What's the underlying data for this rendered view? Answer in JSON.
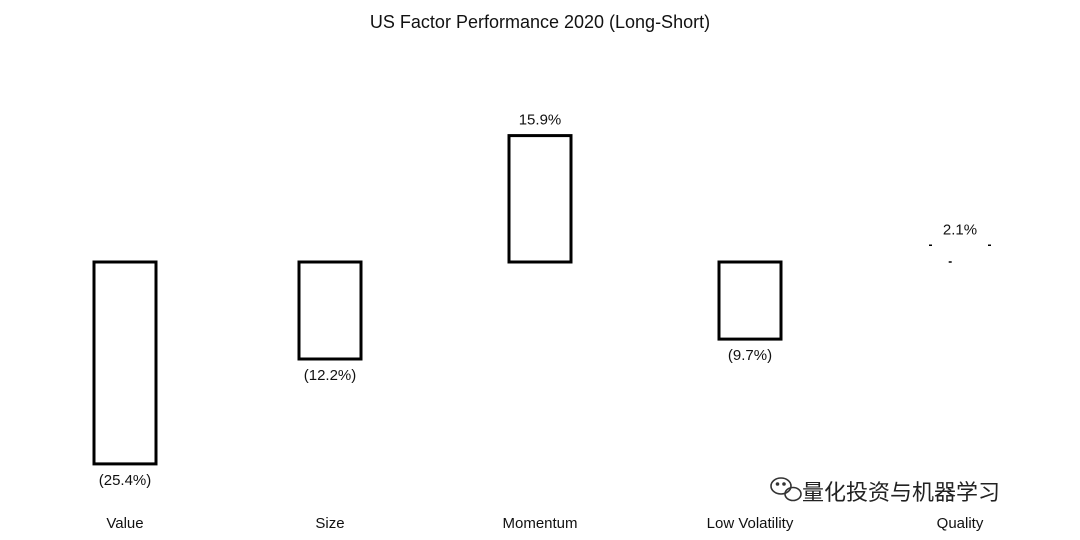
{
  "chart_data": {
    "type": "bar",
    "title": "US Factor Performance 2020 (Long-Short)",
    "categories": [
      "Value",
      "Size",
      "Momentum",
      "Low Volatility",
      "Quality"
    ],
    "values": [
      -25.4,
      -12.2,
      15.9,
      -9.7,
      2.1
    ],
    "data_labels": [
      "(25.4%)",
      "(12.2%)",
      "15.9%",
      "(9.7%)",
      "2.1%"
    ],
    "ylim": [
      -26,
      16
    ],
    "grid": false,
    "legend": "none",
    "bar_fill": "#ffffff",
    "bar_stroke": "#000000"
  },
  "watermark": {
    "text": "量化投资与机器学习",
    "icon": "wechat-icon"
  }
}
